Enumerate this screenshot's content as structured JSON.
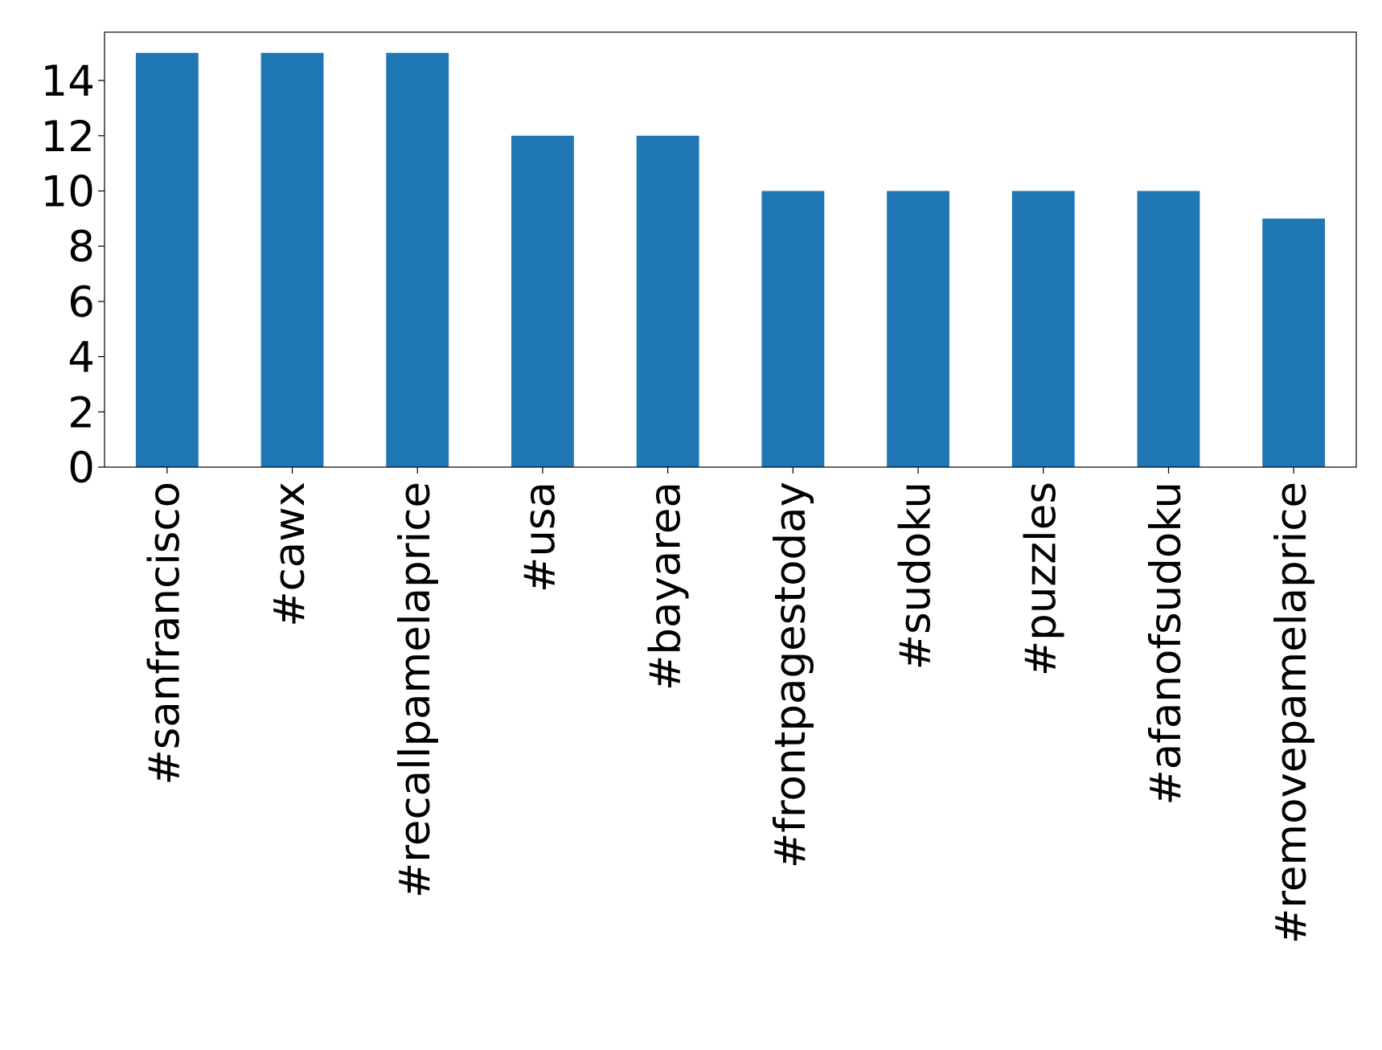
{
  "chart_data": {
    "type": "bar",
    "categories": [
      "#sanfrancisco",
      "#cawx",
      "#recallpamelaprice",
      "#usa",
      "#bayarea",
      "#frontpagestoday",
      "#sudoku",
      "#puzzles",
      "#afanofsudoku",
      "#removepamelaprice"
    ],
    "values": [
      15,
      15,
      15,
      12,
      12,
      10,
      10,
      10,
      10,
      9
    ],
    "color": "#1f77b4",
    "ylim": [
      0,
      15.75
    ],
    "yticks": [
      0,
      2,
      4,
      6,
      8,
      10,
      12,
      14
    ],
    "grid": false
  }
}
